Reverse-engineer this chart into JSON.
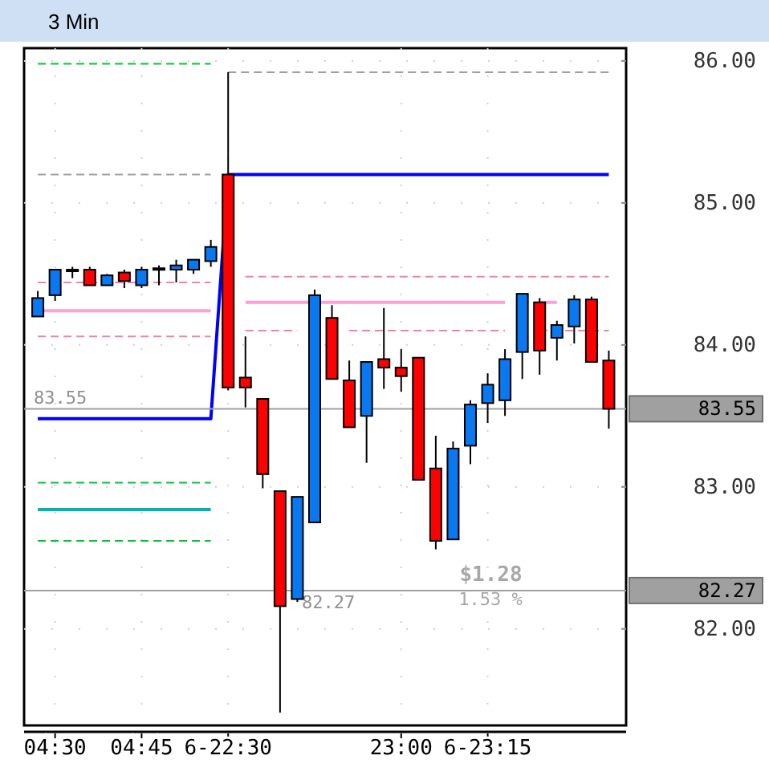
{
  "chart_data": {
    "type": "candlestick",
    "title": "3 Min",
    "categories": [
      null,
      "04:30",
      null,
      null,
      null,
      null,
      "04:45",
      null,
      null,
      null,
      null,
      "6-22:30",
      null,
      null,
      null,
      null,
      null,
      null,
      null,
      null,
      null,
      "23:00",
      null,
      null,
      null,
      null,
      "6-23:15",
      null,
      null,
      null,
      null,
      null,
      null,
      null
    ],
    "ohlc": [
      [
        84.2,
        84.38,
        84.2,
        84.33
      ],
      [
        84.35,
        84.53,
        84.31,
        84.53
      ],
      [
        84.53,
        84.55,
        84.47,
        84.53
      ],
      [
        84.53,
        84.55,
        84.42,
        84.42
      ],
      [
        84.42,
        84.5,
        84.42,
        84.49
      ],
      [
        84.51,
        84.53,
        84.4,
        84.45
      ],
      [
        84.42,
        84.55,
        84.4,
        84.53
      ],
      [
        84.54,
        84.56,
        84.42,
        84.54
      ],
      [
        84.53,
        84.6,
        84.44,
        84.56
      ],
      [
        84.53,
        84.6,
        84.5,
        84.6
      ],
      [
        84.59,
        84.74,
        84.55,
        84.69
      ],
      [
        85.2,
        85.92,
        83.68,
        83.7
      ],
      [
        83.77,
        84.06,
        83.56,
        83.7
      ],
      [
        83.62,
        83.62,
        82.99,
        83.09
      ],
      [
        82.97,
        82.97,
        81.41,
        82.16
      ],
      [
        82.21,
        82.93,
        82.19,
        82.93
      ],
      [
        82.75,
        84.39,
        82.75,
        84.35
      ],
      [
        84.19,
        84.28,
        83.76,
        83.76
      ],
      [
        83.75,
        83.89,
        83.42,
        83.42
      ],
      [
        83.5,
        83.88,
        83.17,
        83.88
      ],
      [
        83.9,
        84.26,
        83.69,
        83.84
      ],
      [
        83.84,
        83.97,
        83.67,
        83.78
      ],
      [
        83.91,
        83.91,
        83.05,
        83.05
      ],
      [
        83.13,
        83.36,
        82.56,
        82.62
      ],
      [
        82.63,
        83.32,
        82.63,
        83.27
      ],
      [
        83.29,
        83.61,
        83.16,
        83.58
      ],
      [
        83.59,
        83.8,
        83.45,
        83.72
      ],
      [
        83.61,
        83.97,
        83.5,
        83.9
      ],
      [
        83.95,
        84.36,
        83.76,
        84.36
      ],
      [
        84.3,
        84.33,
        83.79,
        83.96
      ],
      [
        84.05,
        84.17,
        83.89,
        84.14
      ],
      [
        84.13,
        84.35,
        84.01,
        84.32
      ],
      [
        84.32,
        84.34,
        83.88,
        83.88
      ],
      [
        83.89,
        83.96,
        83.41,
        83.55
      ]
    ],
    "series": [
      {
        "type": "line",
        "color": "#0000ff",
        "line_style": "solid",
        "values": [
          83.48,
          83.48,
          83.48,
          83.48,
          83.48,
          83.48,
          83.48,
          83.48,
          83.48,
          83.48,
          83.48,
          85.2,
          85.2,
          85.2,
          85.2,
          85.2,
          85.2,
          85.2,
          85.2,
          85.2,
          85.2,
          85.2,
          85.2,
          85.2,
          85.2,
          85.2,
          85.2,
          85.2,
          85.2,
          85.2,
          85.2,
          85.2,
          85.2,
          85.2
        ]
      },
      {
        "type": "line",
        "color": "#00b4b4",
        "line_style": "solid",
        "values": [
          82.84,
          82.84,
          82.84,
          82.84,
          82.84,
          82.84,
          82.84,
          82.84,
          82.84,
          82.84,
          82.84,
          null,
          null,
          null,
          null,
          null,
          null,
          null,
          null,
          null,
          null,
          null,
          null,
          null,
          null,
          null,
          null,
          null,
          null,
          null,
          null,
          null,
          null,
          null
        ]
      },
      {
        "type": "line",
        "color": "#ffa0d0",
        "line_style": "solid",
        "values": [
          84.24,
          84.24,
          84.24,
          84.24,
          84.24,
          84.24,
          84.24,
          84.24,
          84.24,
          84.24,
          84.24,
          null,
          84.3,
          84.3,
          84.3,
          84.3,
          84.3,
          84.3,
          84.3,
          84.3,
          84.3,
          84.3,
          84.3,
          84.3,
          84.3,
          84.3,
          84.3,
          84.3,
          null,
          84.3,
          84.3,
          null,
          null,
          null
        ]
      },
      {
        "type": "line",
        "color": "#00c832",
        "line_style": "dashed",
        "values": [
          85.98,
          85.98,
          85.98,
          85.98,
          85.98,
          85.98,
          85.98,
          85.98,
          85.98,
          85.98,
          85.98,
          null,
          null,
          null,
          null,
          null,
          null,
          null,
          null,
          null,
          null,
          null,
          null,
          null,
          null,
          null,
          null,
          null,
          null,
          null,
          null,
          null,
          null,
          null
        ]
      },
      {
        "type": "line",
        "color": "#00c832",
        "line_style": "dashed",
        "values": [
          83.03,
          83.03,
          83.03,
          83.03,
          83.03,
          83.03,
          83.03,
          83.03,
          83.03,
          83.03,
          83.03,
          null,
          null,
          null,
          null,
          null,
          null,
          null,
          null,
          null,
          null,
          null,
          null,
          null,
          null,
          null,
          null,
          null,
          null,
          null,
          null,
          null,
          null,
          null
        ]
      },
      {
        "type": "line",
        "color": "#00c832",
        "line_style": "dashed",
        "values": [
          82.62,
          82.62,
          82.62,
          82.62,
          82.62,
          82.62,
          82.62,
          82.62,
          82.62,
          82.62,
          82.62,
          null,
          null,
          null,
          null,
          null,
          null,
          null,
          null,
          null,
          null,
          null,
          null,
          null,
          null,
          null,
          null,
          null,
          null,
          null,
          null,
          null,
          null,
          null
        ]
      },
      {
        "type": "line",
        "color": "#a0a0a0",
        "line_style": "dashed",
        "values": [
          85.2,
          85.2,
          85.2,
          85.2,
          85.2,
          85.2,
          85.2,
          85.2,
          85.2,
          85.2,
          85.2,
          null,
          null,
          null,
          null,
          null,
          null,
          null,
          null,
          null,
          null,
          null,
          null,
          null,
          null,
          null,
          null,
          null,
          null,
          null,
          null,
          null,
          null,
          null
        ]
      },
      {
        "type": "line",
        "color": "#f080b0",
        "line_style": "dashed",
        "values": [
          84.44,
          84.44,
          84.44,
          84.44,
          84.44,
          84.44,
          84.44,
          84.44,
          84.44,
          84.44,
          84.44,
          null,
          null,
          null,
          null,
          null,
          null,
          null,
          null,
          null,
          null,
          null,
          null,
          null,
          null,
          null,
          null,
          null,
          null,
          null,
          null,
          null,
          null,
          null
        ]
      },
      {
        "type": "line",
        "color": "#f080b0",
        "line_style": "dashed",
        "values": [
          84.06,
          84.06,
          84.06,
          84.06,
          84.06,
          84.06,
          84.06,
          84.06,
          84.06,
          84.06,
          84.06,
          null,
          null,
          null,
          null,
          null,
          null,
          null,
          null,
          null,
          null,
          null,
          null,
          null,
          null,
          null,
          null,
          null,
          null,
          null,
          null,
          null,
          null,
          null
        ]
      },
      {
        "type": "line",
        "color": "#a0a0a0",
        "line_style": "dashed",
        "values": [
          null,
          null,
          null,
          null,
          null,
          null,
          null,
          null,
          null,
          null,
          null,
          85.92,
          85.92,
          85.92,
          85.92,
          85.92,
          85.92,
          85.92,
          85.92,
          85.92,
          85.92,
          85.92,
          85.92,
          85.92,
          85.92,
          85.92,
          85.92,
          85.92,
          85.92,
          85.92,
          85.92,
          85.92,
          85.92,
          85.92
        ]
      },
      {
        "type": "line",
        "color": "#f080b0",
        "line_style": "dashed",
        "values": [
          null,
          null,
          null,
          null,
          null,
          null,
          null,
          null,
          null,
          null,
          null,
          null,
          84.48,
          84.48,
          84.48,
          84.48,
          84.48,
          84.48,
          84.48,
          84.48,
          84.48,
          84.48,
          84.48,
          84.48,
          84.48,
          84.48,
          84.48,
          84.48,
          84.48,
          84.48,
          84.48,
          84.48,
          84.48,
          84.48
        ]
      },
      {
        "type": "line",
        "color": "#f080b0",
        "line_style": "dashed",
        "values": [
          null,
          null,
          null,
          null,
          null,
          null,
          null,
          null,
          null,
          null,
          null,
          null,
          84.1,
          84.1,
          84.1,
          84.1,
          null,
          null,
          84.1,
          84.1,
          84.1,
          84.1,
          84.1,
          84.1,
          84.1,
          84.1,
          84.1,
          84.1,
          null,
          84.1,
          84.1,
          84.1,
          84.1,
          84.1
        ]
      }
    ],
    "ylim": [
      81.32,
      86.09
    ],
    "yticks": [
      {
        "value": 82,
        "label": "82.00"
      },
      {
        "value": 83,
        "label": "83.00"
      },
      {
        "value": 84,
        "label": "84.00"
      },
      {
        "value": 85,
        "label": "85.00"
      },
      {
        "value": 86,
        "label": "86.00"
      }
    ],
    "ref_lines": [
      {
        "axis": "y",
        "value": 83.55,
        "label": "83.55",
        "color": "#a0a0a0"
      },
      {
        "axis": "y",
        "value": 82.27,
        "label": "82.27",
        "color": "#a0a0a0"
      }
    ],
    "annotations": [
      "$1.28",
      "1.53 %"
    ],
    "grid": true
  }
}
